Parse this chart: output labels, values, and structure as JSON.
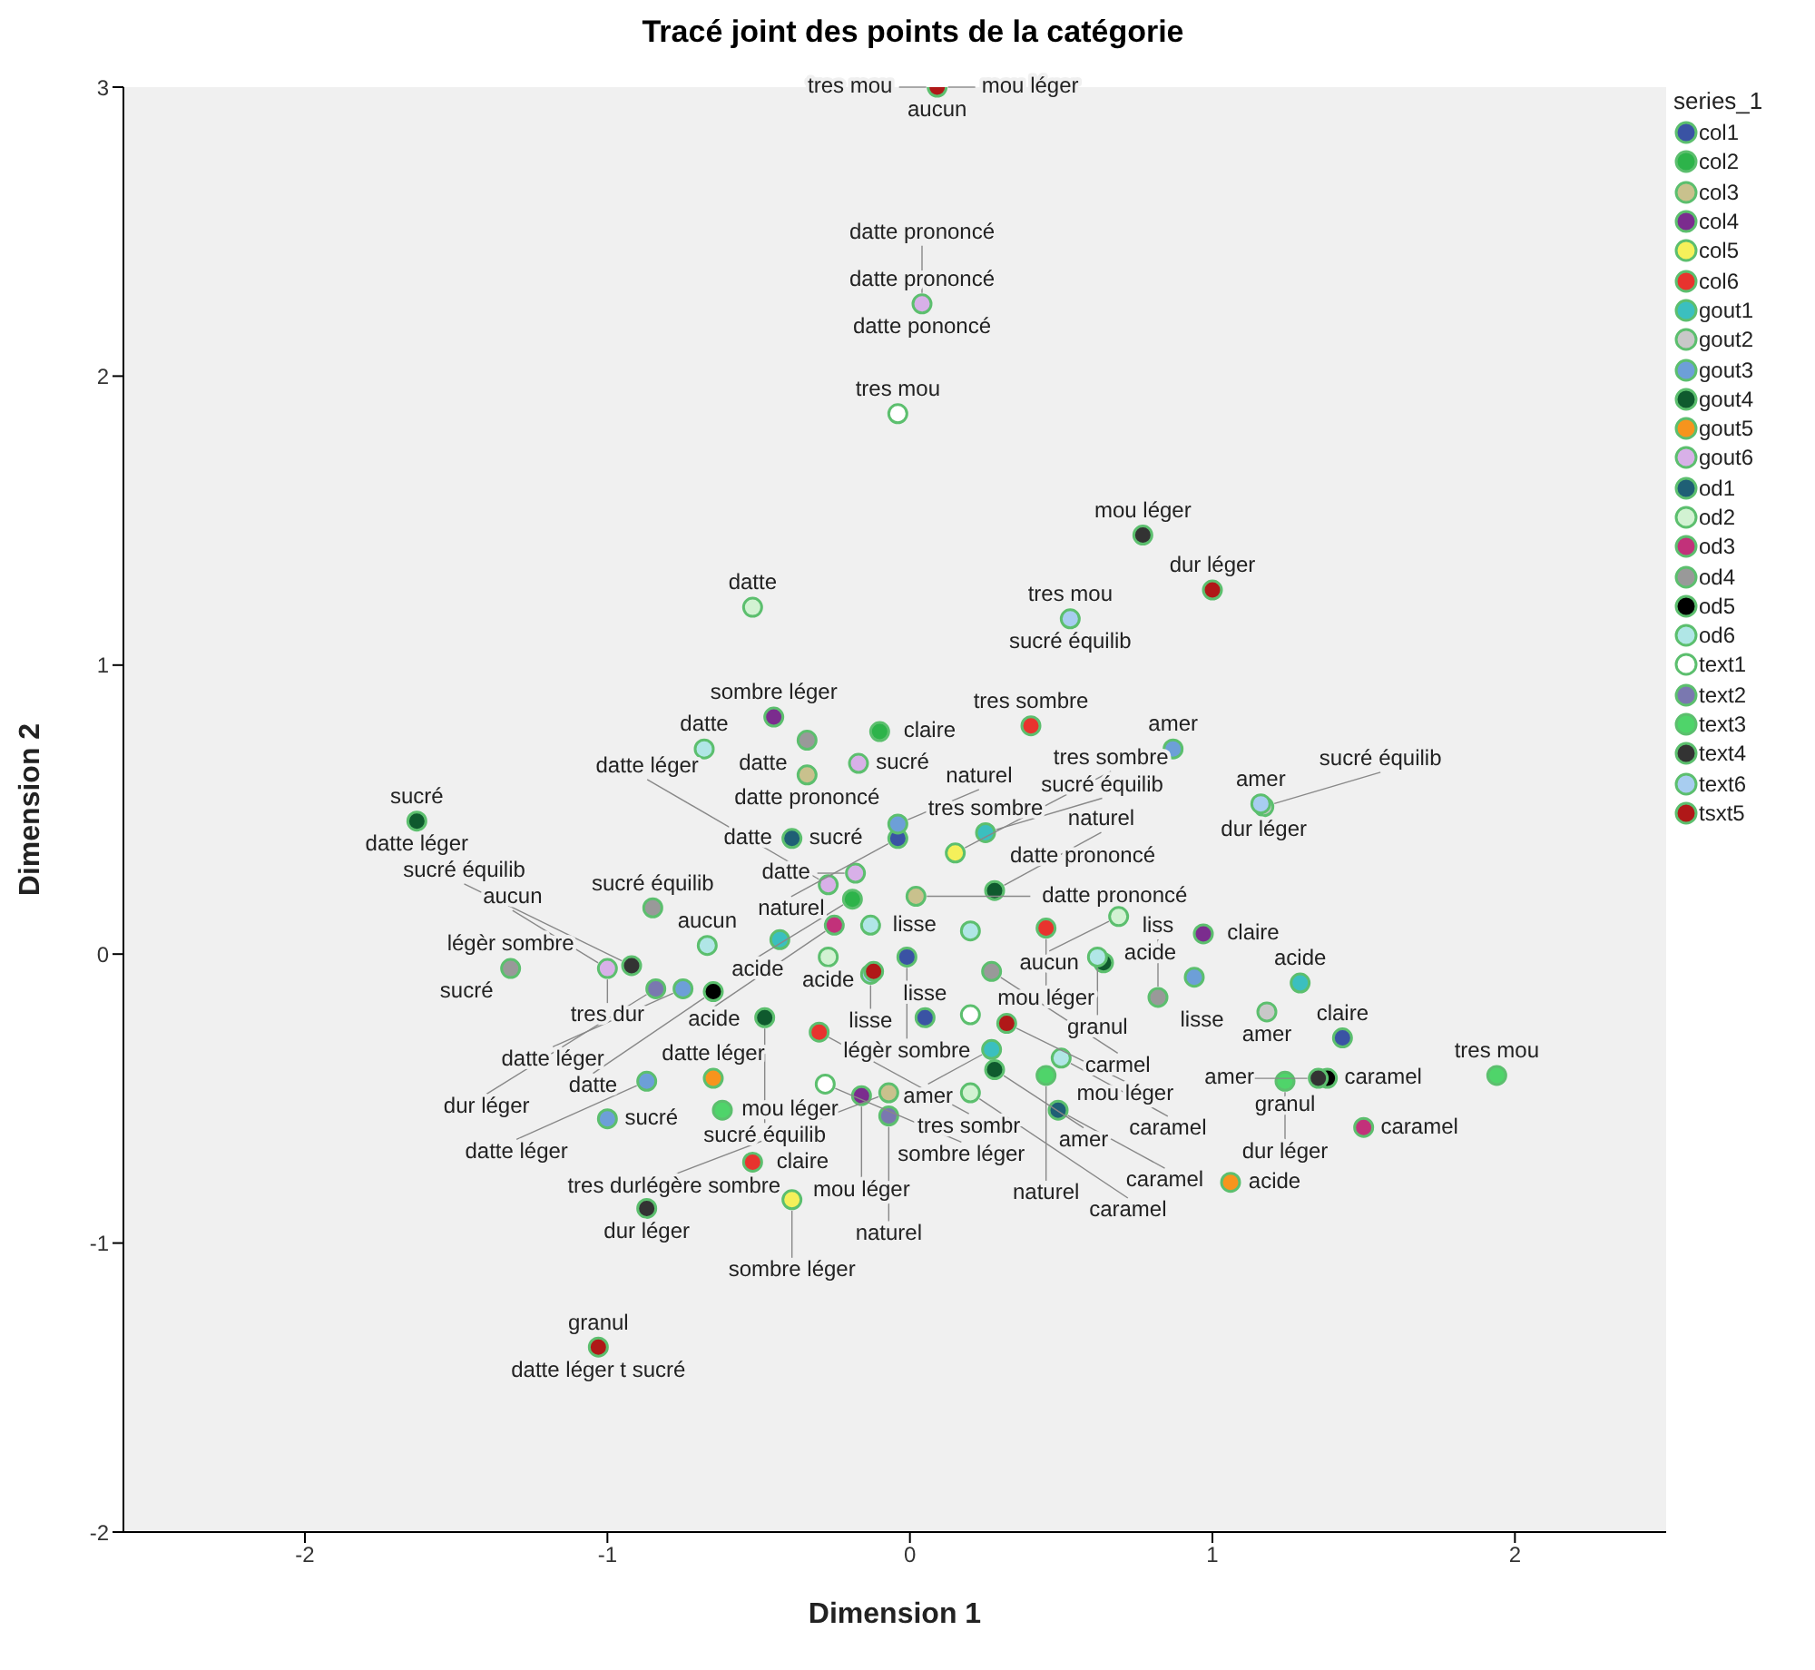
{
  "chart_data": {
    "type": "scatter",
    "title": "Tracé joint des points de la catégorie",
    "xlabel": "Dimension 1",
    "ylabel": "Dimension 2",
    "legend_title": "series_1",
    "legend": "top right",
    "grid": false,
    "marker": "circle",
    "xlim": [
      -2.6,
      2.5
    ],
    "ylim": [
      -2,
      3
    ],
    "xticks": [
      -2,
      -1,
      0,
      1,
      2
    ],
    "yticks": [
      -2,
      -1,
      0,
      1,
      2,
      3
    ],
    "series": [
      {
        "name": "col1",
        "color": "#3a53a4",
        "x": [
          -0.04,
          0.05,
          -0.01,
          1.43
        ],
        "values": [
          0.4,
          -0.22,
          -0.01,
          -0.29
        ]
      },
      {
        "name": "col2",
        "color": "#2db34a",
        "x": [
          -0.1,
          -0.19
        ],
        "values": [
          0.77,
          0.19
        ]
      },
      {
        "name": "col3",
        "color": "#c9c18d",
        "x": [
          -0.34,
          0.02,
          -0.07
        ],
        "values": [
          0.62,
          0.2,
          -0.48
        ]
      },
      {
        "name": "col4",
        "color": "#7b2c8e",
        "x": [
          -0.45,
          0.97,
          -0.16
        ],
        "values": [
          0.82,
          0.07,
          -0.49
        ]
      },
      {
        "name": "col5",
        "color": "#f5f05a",
        "x": [
          0.15,
          -0.39
        ],
        "values": [
          0.35,
          -0.85
        ]
      },
      {
        "name": "col6",
        "color": "#e8332e",
        "x": [
          0.4,
          0.45,
          -0.3,
          -0.52
        ],
        "values": [
          0.79,
          0.09,
          -0.27,
          -0.72
        ]
      },
      {
        "name": "gout1",
        "color": "#3bbfbf",
        "x": [
          0.25,
          1.29,
          0.27,
          -0.43
        ],
        "values": [
          0.42,
          -0.1,
          -0.33,
          0.05
        ]
      },
      {
        "name": "gout2",
        "color": "#c8c8c8",
        "x": [
          1.17,
          1.18
        ],
        "values": [
          0.51,
          -0.2
        ]
      },
      {
        "name": "gout3",
        "color": "#6d9fd8",
        "x": [
          0.87,
          -0.04,
          0.94,
          -0.75,
          -0.87,
          -1.0
        ],
        "values": [
          0.71,
          0.45,
          -0.08,
          -0.12,
          -0.44,
          -0.57
        ]
      },
      {
        "name": "gout4",
        "color": "#0f5a2e",
        "x": [
          -1.63,
          0.28,
          0.64,
          0.28,
          -0.48
        ],
        "values": [
          0.46,
          0.22,
          -0.03,
          -0.4,
          -0.22
        ]
      },
      {
        "name": "gout5",
        "color": "#f7941d",
        "x": [
          1.06,
          -0.65
        ],
        "values": [
          -0.79,
          -0.43
        ]
      },
      {
        "name": "gout6",
        "color": "#d8b0e8",
        "x": [
          0.04,
          -0.17,
          -0.27,
          -0.18,
          -1.0
        ],
        "values": [
          2.25,
          0.66,
          0.24,
          0.28,
          -0.05
        ]
      },
      {
        "name": "od1",
        "color": "#1f5f75",
        "x": [
          -0.39,
          0.49
        ],
        "values": [
          0.4,
          -0.54
        ]
      },
      {
        "name": "od2",
        "color": "#d2f2d2",
        "x": [
          -0.52,
          0.69,
          0.2,
          -0.27
        ],
        "values": [
          1.2,
          0.13,
          -0.48,
          -0.01
        ]
      },
      {
        "name": "od3",
        "color": "#c2317a",
        "x": [
          1.5,
          -0.25
        ],
        "values": [
          -0.6,
          0.1
        ]
      },
      {
        "name": "od4",
        "color": "#999999",
        "x": [
          -0.34,
          0.82,
          0.27,
          -0.85,
          -1.32
        ],
        "values": [
          0.74,
          -0.15,
          -0.06,
          0.16,
          -0.05
        ]
      },
      {
        "name": "od5",
        "color": "#000000",
        "x": [
          1.38,
          -0.65
        ],
        "values": [
          -0.43,
          -0.13
        ]
      },
      {
        "name": "od6",
        "color": "#b0e6e6",
        "x": [
          -0.68,
          0.2,
          0.62,
          0.5,
          -0.13,
          -0.67
        ],
        "values": [
          0.71,
          0.08,
          -0.01,
          -0.36,
          0.1,
          0.03
        ]
      },
      {
        "name": "text1",
        "color": "#ffffff",
        "x": [
          -0.04,
          0.2,
          -0.28
        ],
        "values": [
          1.87,
          -0.21,
          -0.45
        ]
      },
      {
        "name": "text2",
        "color": "#7a78b0",
        "x": [
          -0.84,
          -0.07
        ],
        "values": [
          -0.12,
          -0.56
        ]
      },
      {
        "name": "text3",
        "color": "#4fd46a",
        "x": [
          1.24,
          1.94,
          0.45,
          -0.62
        ],
        "values": [
          -0.44,
          -0.42,
          -0.42,
          -0.54
        ]
      },
      {
        "name": "text4",
        "color": "#333333",
        "x": [
          0.77,
          1.35,
          -0.92,
          -0.87
        ],
        "values": [
          1.45,
          -0.43,
          -0.04,
          -0.88
        ]
      },
      {
        "name": "text6",
        "color": "#a8cdf0",
        "x": [
          0.53,
          1.16,
          -0.13
        ],
        "values": [
          1.16,
          0.52,
          -0.07
        ]
      },
      {
        "name": "tsxt5",
        "color": "#b01818",
        "x": [
          0.09,
          1.0,
          0.32,
          -0.12,
          -1.03
        ],
        "values": [
          3.0,
          1.26,
          -0.24,
          -0.06,
          -1.36
        ]
      }
    ],
    "annotations": [
      {
        "text": "aucun",
        "x": 0.09,
        "y": 3.0
      },
      {
        "text": "mou léger",
        "x": 0.09,
        "y": 3.0
      },
      {
        "text": "tres mou",
        "x": 0.09,
        "y": 3.0
      },
      {
        "text": "datte prononcé",
        "x": 0.04,
        "y": 2.25
      },
      {
        "text": "datte pononcé",
        "x": 0.04,
        "y": 2.25
      },
      {
        "text": "datte prononcé",
        "x": 0.04,
        "y": 2.25
      },
      {
        "text": "tres mou",
        "x": -0.04,
        "y": 1.87
      },
      {
        "text": "mou léger",
        "x": 0.77,
        "y": 1.45
      },
      {
        "text": "datte",
        "x": -0.52,
        "y": 1.2
      },
      {
        "text": "dur léger",
        "x": 1.0,
        "y": 1.26
      },
      {
        "text": "tres mou",
        "x": 0.53,
        "y": 1.16
      },
      {
        "text": "sucré équilib",
        "x": 0.53,
        "y": 1.16
      },
      {
        "text": "sombre léger",
        "x": -0.45,
        "y": 0.82
      },
      {
        "text": "claire",
        "x": -0.1,
        "y": 0.77
      },
      {
        "text": "tres sombre",
        "x": 0.4,
        "y": 0.79
      },
      {
        "text": "amer",
        "x": 0.87,
        "y": 0.71
      },
      {
        "text": "datte",
        "x": -0.68,
        "y": 0.71
      },
      {
        "text": "datte",
        "x": -0.34,
        "y": 0.74
      },
      {
        "text": "amer",
        "x": 1.16,
        "y": 0.52
      },
      {
        "text": "dur léger",
        "x": 1.17,
        "y": 0.51
      },
      {
        "text": "datte prononcé",
        "x": -0.34,
        "y": 0.62
      },
      {
        "text": "sucré",
        "x": -0.17,
        "y": 0.66
      },
      {
        "text": "tres sombre",
        "x": 0.25,
        "y": 0.42
      },
      {
        "text": "sucré",
        "x": -0.39,
        "y": 0.4
      },
      {
        "text": "datte",
        "x": -0.39,
        "y": 0.4
      },
      {
        "text": "naturel",
        "x": -0.04,
        "y": 0.45
      },
      {
        "text": "datte prononcé",
        "x": 0.25,
        "y": 0.42
      },
      {
        "text": "naturel",
        "x": -0.04,
        "y": 0.4
      },
      {
        "text": "sucré équilib",
        "x": 0.25,
        "y": 0.42
      },
      {
        "text": "tres sombre",
        "x": 0.15,
        "y": 0.35
      },
      {
        "text": "sucré équilib",
        "x": 1.17,
        "y": 0.51
      },
      {
        "text": "sucré",
        "x": -1.63,
        "y": 0.46
      },
      {
        "text": "datte léger",
        "x": -1.63,
        "y": 0.46
      },
      {
        "text": "sucré équilib",
        "x": -0.85,
        "y": 0.16
      },
      {
        "text": "datte léger",
        "x": -0.27,
        "y": 0.24
      },
      {
        "text": "datte prononcé",
        "x": 0.02,
        "y": 0.2
      },
      {
        "text": "naturel",
        "x": 0.28,
        "y": 0.22
      },
      {
        "text": "aucun",
        "x": 0.69,
        "y": 0.13
      },
      {
        "text": "claire",
        "x": 0.97,
        "y": 0.07
      },
      {
        "text": "datte",
        "x": -0.18,
        "y": 0.28
      },
      {
        "text": "acide",
        "x": -0.19,
        "y": 0.19
      },
      {
        "text": "légèr sombre",
        "x": -1.32,
        "y": -0.05
      },
      {
        "text": "tres dur",
        "x": -1.0,
        "y": -0.05
      },
      {
        "text": "aucun",
        "x": -0.67,
        "y": 0.03
      },
      {
        "text": "lisse",
        "x": -0.13,
        "y": 0.1
      },
      {
        "text": "mou léger",
        "x": 0.45,
        "y": 0.09
      },
      {
        "text": "acide",
        "x": 1.29,
        "y": -0.1
      },
      {
        "text": "granul",
        "x": 0.62,
        "y": -0.01
      },
      {
        "text": "sucré",
        "x": -1.32,
        "y": -0.05
      },
      {
        "text": "aucun",
        "x": -1.0,
        "y": -0.05
      },
      {
        "text": "sucré équilib",
        "x": -0.92,
        "y": -0.04
      },
      {
        "text": "acide",
        "x": -0.25,
        "y": 0.1
      },
      {
        "text": "légèr sombre",
        "x": -0.01,
        "y": -0.01
      },
      {
        "text": "carmel",
        "x": 0.27,
        "y": -0.06
      },
      {
        "text": "lisse",
        "x": 0.82,
        "y": -0.15
      },
      {
        "text": "acide",
        "x": 0.94,
        "y": -0.08
      },
      {
        "text": "datte léger",
        "x": -0.75,
        "y": -0.12
      },
      {
        "text": "datte",
        "x": -0.65,
        "y": -0.13
      },
      {
        "text": "acide",
        "x": -0.27,
        "y": -0.01
      },
      {
        "text": "lisse",
        "x": -0.13,
        "y": -0.07
      },
      {
        "text": "lisse",
        "x": 0.05,
        "y": -0.22
      },
      {
        "text": "amer",
        "x": 1.18,
        "y": -0.2
      },
      {
        "text": "claire",
        "x": 1.43,
        "y": -0.29
      },
      {
        "text": "mou léger",
        "x": 0.32,
        "y": -0.24
      },
      {
        "text": "dur léger",
        "x": -0.84,
        "y": -0.12
      },
      {
        "text": "sucré équilib",
        "x": -0.48,
        "y": -0.22
      },
      {
        "text": "tres sombr",
        "x": -0.3,
        "y": -0.27
      },
      {
        "text": "liss",
        "x": 0.82,
        "y": -0.15
      },
      {
        "text": "caramel",
        "x": 0.5,
        "y": -0.36
      },
      {
        "text": "datte léger",
        "x": -0.65,
        "y": -0.43
      },
      {
        "text": "sombre léger",
        "x": -0.28,
        "y": -0.45
      },
      {
        "text": "mou léger",
        "x": -0.16,
        "y": -0.49
      },
      {
        "text": "amer",
        "x": 0.27,
        "y": -0.33
      },
      {
        "text": "amer",
        "x": 0.28,
        "y": -0.4
      },
      {
        "text": "granul",
        "x": 1.24,
        "y": -0.44
      },
      {
        "text": "dur léger",
        "x": 1.24,
        "y": -0.44
      },
      {
        "text": "caramel",
        "x": 1.38,
        "y": -0.43
      },
      {
        "text": "tres mou",
        "x": 1.94,
        "y": -0.42
      },
      {
        "text": "naturel",
        "x": 0.45,
        "y": -0.42
      },
      {
        "text": "amer",
        "x": 1.35,
        "y": -0.43
      },
      {
        "text": "datte léger",
        "x": -0.87,
        "y": -0.44
      },
      {
        "text": "mou léger",
        "x": -0.62,
        "y": -0.54
      },
      {
        "text": "sucré",
        "x": -1.0,
        "y": -0.57
      },
      {
        "text": "claire",
        "x": -0.52,
        "y": -0.72
      },
      {
        "text": "naturel",
        "x": -0.07,
        "y": -0.56
      },
      {
        "text": "caramel",
        "x": 0.2,
        "y": -0.48
      },
      {
        "text": "caramel",
        "x": 0.49,
        "y": -0.54
      },
      {
        "text": "acide",
        "x": 1.06,
        "y": -0.79
      },
      {
        "text": "caramel",
        "x": 1.5,
        "y": -0.6
      },
      {
        "text": "tres durlégère sombre",
        "x": -0.07,
        "y": -0.48
      },
      {
        "text": "dur léger",
        "x": -0.87,
        "y": -0.88
      },
      {
        "text": "sombre léger",
        "x": -0.39,
        "y": -0.85
      },
      {
        "text": "granul",
        "x": -1.03,
        "y": -1.36
      },
      {
        "text": "datte léger t sucré",
        "x": -1.03,
        "y": -1.36
      }
    ]
  }
}
